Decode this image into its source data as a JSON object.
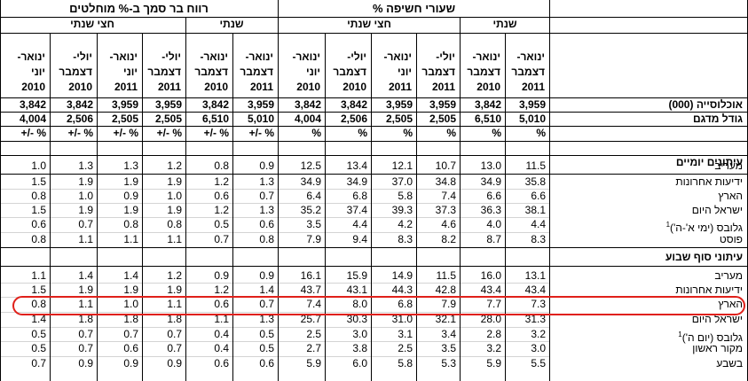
{
  "sections": {
    "left_title": "רווח בר סמך ב-% מוחלטים",
    "right_title": "שעורי חשיפה %"
  },
  "subgroups": {
    "half_year": "חצי שנתי",
    "yearly": "שנתי"
  },
  "periods": [
    [
      "ינואר-",
      "יוני",
      "2010"
    ],
    [
      "יולי-",
      "דצמבר",
      "2010"
    ],
    [
      "ינואר-",
      "יוני",
      "2011"
    ],
    [
      "יולי-",
      "דצמבר",
      "2011"
    ],
    [
      "ינואר-",
      "דצמבר",
      "2010"
    ],
    [
      "ינואר-",
      "דצמבר",
      "2011"
    ],
    [
      "ינואר-",
      "יוני",
      "2010"
    ],
    [
      "יולי-",
      "דצמבר",
      "2010"
    ],
    [
      "ינואר-",
      "יוני",
      "2011"
    ],
    [
      "יולי-",
      "דצמבר",
      "2011"
    ],
    [
      "ינואר-",
      "דצמבר",
      "2010"
    ],
    [
      "ינואר-",
      "דצמבר",
      "2011"
    ]
  ],
  "rows": [
    {
      "label": "אוכלוסייה (000)",
      "values": [
        "3,842",
        "3,842",
        "3,959",
        "3,959",
        "3,842",
        "3,959",
        "3,842",
        "3,842",
        "3,959",
        "3,959",
        "3,842",
        "3,959"
      ],
      "bold": true
    },
    {
      "label": "גודל מדגם",
      "values": [
        "4,004",
        "2,506",
        "2,505",
        "2,505",
        "6,510",
        "5,010",
        "4,004",
        "2,506",
        "2,505",
        "2,505",
        "6,510",
        "5,010"
      ],
      "bold": true
    },
    {
      "label": "",
      "values": [
        "+/- %",
        "+/- %",
        "+/- %",
        "+/- %",
        "+/- %",
        "+/- %",
        "%",
        "%",
        "%",
        "%",
        "%",
        "%"
      ],
      "units": true
    },
    {
      "label": "",
      "values": [
        "",
        "",
        "",
        "",
        "",
        "",
        "",
        "",
        "",
        "",
        "",
        ""
      ]
    },
    {
      "label": "עיתונים יומיים",
      "values": [
        "",
        "",
        "",
        "",
        "",
        "",
        "",
        "",
        "",
        "",
        "",
        ""
      ],
      "bold": true
    },
    {
      "label": "מעריב",
      "values": [
        "1.0",
        "1.3",
        "1.3",
        "1.2",
        "0.8",
        "0.9",
        "12.5",
        "13.4",
        "12.1",
        "10.7",
        "13.0",
        "11.5"
      ]
    },
    {
      "label": "ידיעות אחרונות",
      "values": [
        "1.5",
        "1.9",
        "1.9",
        "1.9",
        "1.2",
        "1.3",
        "34.9",
        "34.9",
        "37.0",
        "34.8",
        "34.9",
        "35.8"
      ]
    },
    {
      "label": "הארץ",
      "values": [
        "0.8",
        "1.0",
        "0.9",
        "1.0",
        "0.6",
        "0.7",
        "6.4",
        "6.8",
        "5.8",
        "7.4",
        "6.6",
        "6.6"
      ]
    },
    {
      "label": "ישראל היום",
      "values": [
        "1.5",
        "1.9",
        "1.9",
        "1.9",
        "1.2",
        "1.3",
        "35.2",
        "37.4",
        "39.3",
        "37.3",
        "36.3",
        "38.1"
      ]
    },
    {
      "label": "גלובס (ימי א'-ה')",
      "sup": "1",
      "values": [
        "0.6",
        "0.7",
        "0.8",
        "0.8",
        "0.5",
        "0.6",
        "3.5",
        "4.4",
        "4.2",
        "4.6",
        "4.0",
        "4.4"
      ]
    },
    {
      "label": "פוסט",
      "values": [
        "0.8",
        "1.1",
        "1.1",
        "1.1",
        "0.7",
        "0.8",
        "7.9",
        "9.4",
        "8.3",
        "8.2",
        "8.7",
        "8.3"
      ]
    },
    {
      "label": "",
      "values": [
        "",
        "",
        "",
        "",
        "",
        "",
        "",
        "",
        "",
        "",
        "",
        ""
      ]
    },
    {
      "label": "עיתוני סוף שבוע",
      "values": [
        "",
        "",
        "",
        "",
        "",
        "",
        "",
        "",
        "",
        "",
        "",
        ""
      ],
      "bold": true
    },
    {
      "label": "מעריב",
      "values": [
        "1.1",
        "1.4",
        "1.4",
        "1.2",
        "0.9",
        "0.9",
        "16.1",
        "15.9",
        "14.9",
        "11.5",
        "16.0",
        "13.1"
      ]
    },
    {
      "label": "ידיעות אחרונות",
      "values": [
        "1.5",
        "1.9",
        "1.9",
        "1.9",
        "1.2",
        "1.4",
        "43.7",
        "43.1",
        "44.3",
        "42.8",
        "43.4",
        "43.4"
      ]
    },
    {
      "label": "הארץ",
      "values": [
        "0.8",
        "1.1",
        "1.0",
        "1.1",
        "0.6",
        "0.7",
        "7.4",
        "8.0",
        "6.8",
        "7.9",
        "7.7",
        "7.3"
      ]
    },
    {
      "label": "ישראל היום",
      "values": [
        "1.4",
        "1.8",
        "1.8",
        "1.8",
        "1.1",
        "1.3",
        "25.7",
        "30.3",
        "31.0",
        "32.1",
        "28.0",
        "31.3"
      ]
    },
    {
      "label": "גלובס (יום ה')",
      "sup": "1",
      "values": [
        "0.5",
        "0.7",
        "0.7",
        "0.7",
        "0.4",
        "0.5",
        "2.5",
        "3.0",
        "3.1",
        "3.4",
        "2.8",
        "3.2"
      ]
    },
    {
      "label": "מקור ראשון",
      "values": [
        "0.5",
        "0.7",
        "0.6",
        "0.7",
        "0.4",
        "0.5",
        "2.7",
        "3.8",
        "2.5",
        "3.5",
        "3.2",
        "3.0"
      ]
    },
    {
      "label": "בשבע",
      "values": [
        "0.7",
        "0.9",
        "0.9",
        "0.9",
        "0.6",
        "0.6",
        "5.9",
        "6.0",
        "5.8",
        "5.3",
        "5.9",
        "5.5"
      ]
    }
  ]
}
